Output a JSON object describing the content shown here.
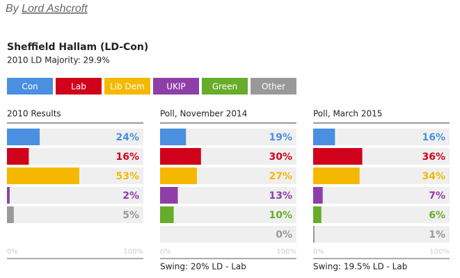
{
  "byline": {
    "prefix": "By",
    "author": "Lord Ashcroft"
  },
  "title": "Sheffield Hallam (LD-Con)",
  "subtitle": "2010 LD Majority: 29.9%",
  "legend": [
    {
      "name": "Con",
      "color": "#4a8fe0"
    },
    {
      "name": "Lab",
      "color": "#d0021b"
    },
    {
      "name": "Lib Dem",
      "color": "#f5b800"
    },
    {
      "name": "UKIP",
      "color": "#8e3fa7"
    },
    {
      "name": "Green",
      "color": "#67ac2a"
    },
    {
      "name": "Other",
      "color": "#999999"
    }
  ],
  "chart_data": [
    {
      "type": "bar",
      "title": "2010 Results",
      "values": [
        24,
        16,
        53,
        2,
        5
      ],
      "value_labels": [
        "24%",
        "16%",
        "53%",
        "2%",
        "5%"
      ],
      "colors": [
        "#4a8fe0",
        "#d0021b",
        "#f5b800",
        "#8e3fa7",
        "#999999"
      ],
      "xlim": [
        0,
        100
      ],
      "xticks": [
        {
          "value": 0,
          "label": "0%"
        },
        {
          "value": 100,
          "label": "100%"
        }
      ]
    },
    {
      "type": "bar",
      "title": "Poll, November 2014",
      "values": [
        19,
        30,
        27,
        13,
        10,
        0
      ],
      "value_labels": [
        "19%",
        "30%",
        "27%",
        "13%",
        "10%",
        "0%"
      ],
      "colors": [
        "#4a8fe0",
        "#d0021b",
        "#f5b800",
        "#8e3fa7",
        "#67ac2a",
        "#999999"
      ],
      "xlim": [
        0,
        100
      ],
      "xticks": [
        {
          "value": 0,
          "label": "0%"
        },
        {
          "value": 100,
          "label": "100%"
        }
      ],
      "note": "Swing: 20% LD - Lab"
    },
    {
      "type": "bar",
      "title": "Poll, March 2015",
      "values": [
        16,
        36,
        34,
        7,
        6,
        1
      ],
      "value_labels": [
        "16%",
        "36%",
        "34%",
        "7%",
        "6%",
        "1%"
      ],
      "colors": [
        "#4a8fe0",
        "#d0021b",
        "#f5b800",
        "#8e3fa7",
        "#67ac2a",
        "#999999"
      ],
      "xlim": [
        0,
        100
      ],
      "xticks": [
        {
          "value": 0,
          "label": "0%"
        },
        {
          "value": 100,
          "label": "100%"
        }
      ],
      "note": "Swing: 19.5% LD - Lab"
    }
  ]
}
